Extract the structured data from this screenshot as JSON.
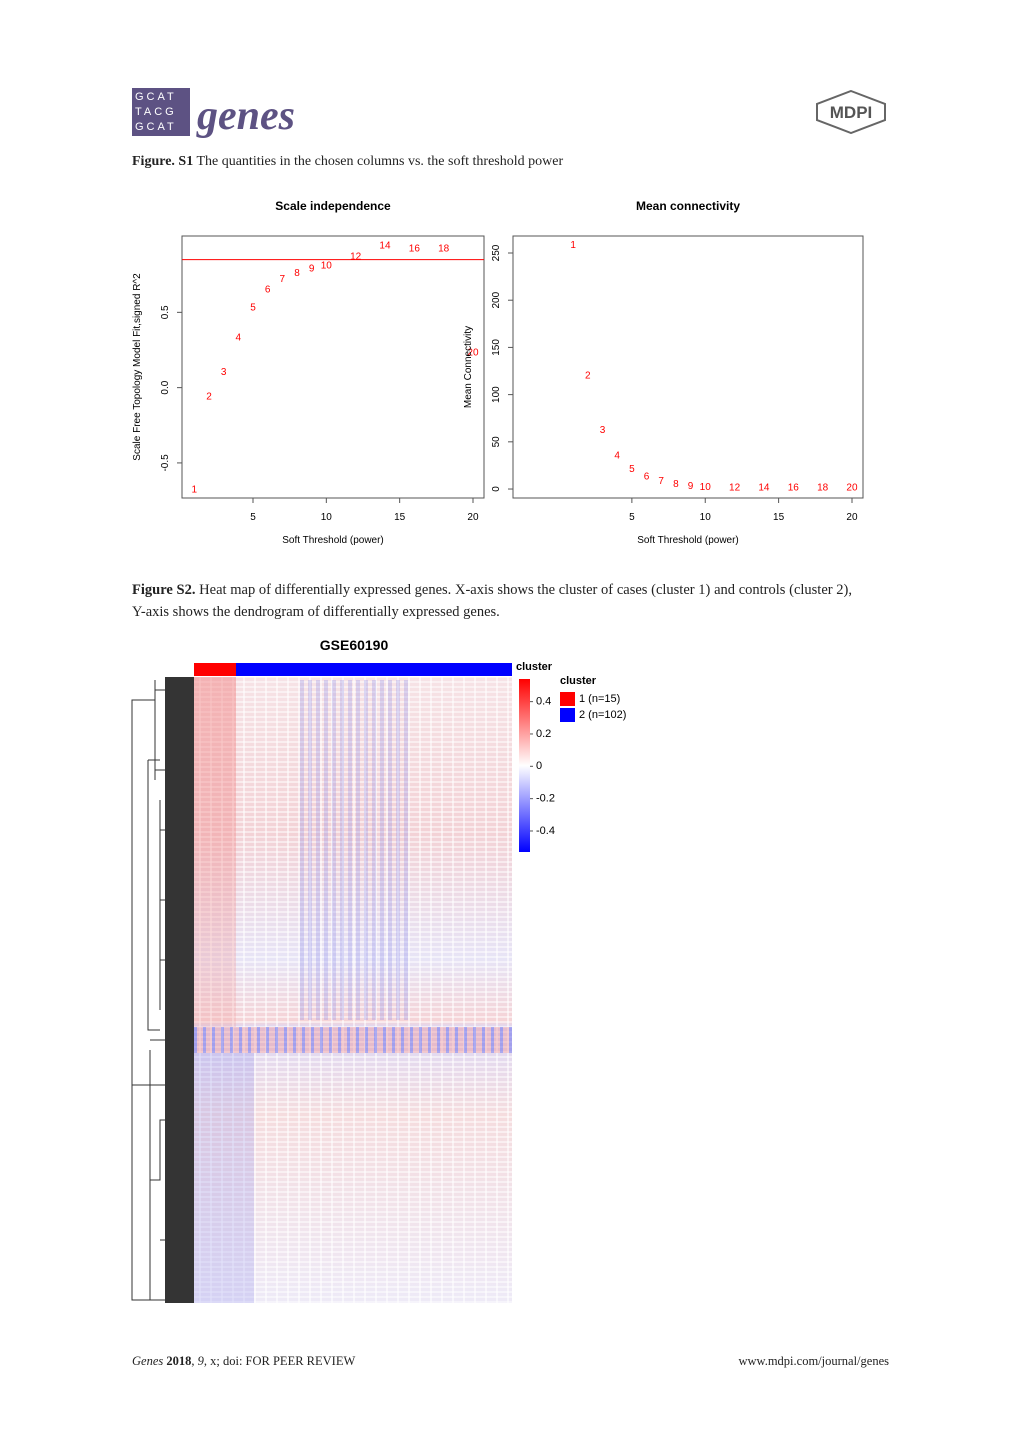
{
  "header": {
    "logo_letters": [
      "GCAT",
      "TACG",
      "GCAT"
    ],
    "journal": "genes",
    "publisher": "MDPI"
  },
  "figure_s1": {
    "caption_label": "Figure. S1",
    "caption_text": "The quantities in the chosen columns vs. the soft threshold power"
  },
  "chart_data": [
    {
      "type": "scatter",
      "title": "Scale independence",
      "xlabel": "Soft Threshold (power)",
      "ylabel": "Scale Free Topology Model Fit,signed R^2",
      "x": [
        1,
        2,
        3,
        4,
        5,
        6,
        7,
        8,
        9,
        10,
        12,
        14,
        16,
        18,
        20
      ],
      "values": [
        -0.68,
        -0.06,
        0.1,
        0.33,
        0.53,
        0.65,
        0.72,
        0.76,
        0.79,
        0.81,
        0.87,
        0.94,
        0.92,
        0.92,
        0.23
      ],
      "color": "#ff0000",
      "hline": 0.85,
      "xlim": [
        0.16,
        20.75
      ],
      "ylim": [
        -0.733,
        1.007
      ],
      "xticks": [
        5,
        10,
        15,
        20
      ],
      "yticks": [
        {
          "value": -0.5,
          "label": "-0.5"
        },
        {
          "value": 0,
          "label": "0.0"
        },
        {
          "value": 0.5,
          "label": "0.5"
        }
      ]
    },
    {
      "type": "scatter",
      "title": "Mean connectivity",
      "xlabel": "Soft Threshold (power)",
      "ylabel": "Mean Connectivity",
      "x": [
        1,
        2,
        3,
        4,
        5,
        6,
        7,
        8,
        9,
        10,
        12,
        14,
        16,
        18,
        20
      ],
      "values": [
        258,
        120,
        62,
        35,
        21,
        13,
        8,
        5,
        3,
        2,
        1,
        1,
        1,
        1,
        1
      ],
      "color": "#ff0000",
      "xlim": [
        -3.1,
        20.75
      ],
      "ylim": [
        -9.5,
        268
      ],
      "xticks": [
        5,
        10,
        15,
        20
      ],
      "yticks": [
        0,
        50,
        100,
        150,
        200,
        250
      ]
    }
  ],
  "figure_s2": {
    "caption_label": "Figure S2.",
    "caption_text": "Heat map of differentially expressed genes. X-axis shows the cluster of cases (cluster 1) and controls (cluster 2), Y-axis shows the dendrogram of differentially expressed genes."
  },
  "heatmap": {
    "title": "GSE60190",
    "column_bar_label": "cluster",
    "clim": [
      -0.53,
      0.54
    ],
    "colorbar_ticks": [
      0.4,
      0.2,
      0,
      -0.2,
      -0.4
    ],
    "legend_title": "cluster",
    "legend": [
      {
        "label": "1 (n=15)",
        "color": "#ff0000"
      },
      {
        "label": "2 (n=102)",
        "color": "#0000ff"
      }
    ]
  },
  "footer": {
    "journal": "Genes",
    "year": "2018",
    "volume": "9",
    "rest": ", x; doi: FOR PEER REVIEW",
    "url": "www.mdpi.com/journal/genes"
  }
}
